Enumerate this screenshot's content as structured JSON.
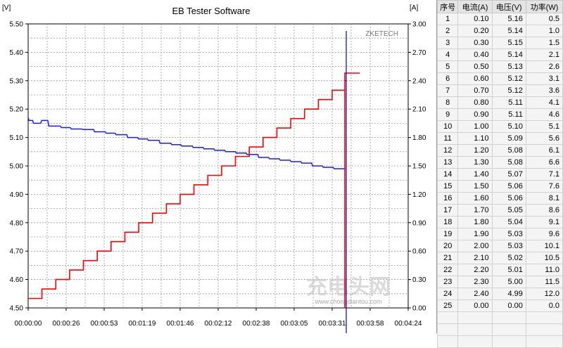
{
  "window": {
    "title": "EB Tester Software"
  },
  "chart": {
    "left_unit": "[V]",
    "right_unit": "[A]",
    "brand": "ZKETECH",
    "watermark": "充电头网",
    "watermark_url": "www.chongdiantou.com",
    "colors": {
      "voltage": "#1a1aff",
      "current": "#ff0000",
      "grid": "#9a9a9a",
      "cursor": "#0000cc"
    }
  },
  "chart_data": {
    "type": "line",
    "title": "EB Tester Software",
    "xlabel": "",
    "ylabel": "[V]",
    "y2label": "[A]",
    "x_ticks": [
      "00:00:00",
      "00:00:26",
      "00:00:53",
      "00:01:19",
      "00:01:46",
      "00:02:12",
      "00:02:38",
      "00:03:05",
      "00:03:31",
      "00:03:58",
      "00:04:24"
    ],
    "y_left_ticks": [
      "5.50",
      "5.40",
      "5.30",
      "5.20",
      "5.10",
      "5.00",
      "4.90",
      "4.80",
      "4.70",
      "4.60",
      "4.50"
    ],
    "y_right_ticks": [
      "3.00",
      "2.70",
      "2.40",
      "2.10",
      "1.80",
      "1.50",
      "1.20",
      "0.90",
      "0.60",
      "0.30",
      "0.00"
    ],
    "ylim": [
      4.5,
      5.5
    ],
    "y2lim": [
      0,
      3
    ],
    "xlim_seconds": [
      0,
      264
    ],
    "grid": true,
    "series": [
      {
        "name": "电压",
        "axis": "left",
        "points": [
          [
            0,
            5.17
          ],
          [
            1,
            5.16
          ],
          [
            5,
            5.16
          ],
          [
            6,
            5.15
          ],
          [
            14,
            5.15
          ],
          [
            15,
            5.16
          ],
          [
            22,
            5.16
          ],
          [
            23,
            5.14
          ],
          [
            36,
            5.14
          ],
          [
            37,
            5.135
          ],
          [
            47,
            5.135
          ],
          [
            48,
            5.13
          ],
          [
            60,
            5.13
          ],
          [
            61,
            5.128
          ],
          [
            73,
            5.128
          ],
          [
            74,
            5.12
          ],
          [
            86,
            5.12
          ],
          [
            87,
            5.115
          ],
          [
            97,
            5.115
          ],
          [
            98,
            5.11
          ],
          [
            110,
            5.11
          ],
          [
            111,
            5.1
          ],
          [
            122,
            5.1
          ],
          [
            123,
            5.095
          ],
          [
            133,
            5.095
          ],
          [
            134,
            5.09
          ],
          [
            146,
            5.09
          ],
          [
            147,
            5.08
          ],
          [
            159,
            5.08
          ],
          [
            160,
            5.075
          ],
          [
            170,
            5.075
          ],
          [
            171,
            5.07
          ],
          [
            183,
            5.07
          ],
          [
            184,
            5.065
          ],
          [
            195,
            5.065
          ],
          [
            196,
            5.06
          ],
          [
            207,
            5.06
          ],
          [
            208,
            5.055
          ],
          [
            219,
            5.055
          ],
          [
            220,
            5.05
          ],
          [
            231,
            5.05
          ],
          [
            232,
            5.045
          ],
          [
            243,
            5.045
          ],
          [
            244,
            5.04
          ],
          [
            256,
            5.04
          ],
          [
            257,
            5.03
          ],
          [
            268,
            5.03
          ],
          [
            269,
            5.025
          ],
          [
            280,
            5.025
          ],
          [
            281,
            5.02
          ],
          [
            292,
            5.02
          ],
          [
            293,
            5.015
          ],
          [
            304,
            5.015
          ],
          [
            305,
            5.01
          ],
          [
            316,
            5.01
          ],
          [
            317,
            5.0
          ],
          [
            328,
            5.0
          ],
          [
            329,
            4.995
          ],
          [
            340,
            4.995
          ],
          [
            341,
            4.99
          ],
          [
            353,
            4.99
          ]
        ],
        "color": "#1a1aff"
      },
      {
        "name": "电流",
        "axis": "right",
        "step_values": [
          0.1,
          0.2,
          0.3,
          0.4,
          0.5,
          0.6,
          0.7,
          0.8,
          0.9,
          1.0,
          1.1,
          1.2,
          1.3,
          1.4,
          1.5,
          1.6,
          1.7,
          1.8,
          1.9,
          2.0,
          2.1,
          2.2,
          2.3,
          2.4,
          2.48
        ],
        "step_seconds": 9.6,
        "end_second": 220.0,
        "drop_to": 0.0,
        "color": "#ff0000"
      }
    ],
    "cursor_x_label": "00:03:58"
  },
  "table": {
    "headers": [
      "序号",
      "电流(A)",
      "电压(V)",
      "功率(W)"
    ],
    "rows": [
      [
        "1",
        "0.10",
        "5.16",
        "0.5"
      ],
      [
        "2",
        "0.20",
        "5.14",
        "1.0"
      ],
      [
        "3",
        "0.30",
        "5.15",
        "1.5"
      ],
      [
        "4",
        "0.40",
        "5.14",
        "2.1"
      ],
      [
        "5",
        "0.50",
        "5.13",
        "2.6"
      ],
      [
        "6",
        "0.60",
        "5.12",
        "3.1"
      ],
      [
        "7",
        "0.70",
        "5.12",
        "3.6"
      ],
      [
        "8",
        "0.80",
        "5.11",
        "4.1"
      ],
      [
        "9",
        "0.90",
        "5.11",
        "4.6"
      ],
      [
        "10",
        "1.00",
        "5.10",
        "5.1"
      ],
      [
        "11",
        "1.10",
        "5.09",
        "5.6"
      ],
      [
        "12",
        "1.20",
        "5.08",
        "6.1"
      ],
      [
        "13",
        "1.30",
        "5.08",
        "6.6"
      ],
      [
        "14",
        "1.40",
        "5.07",
        "7.1"
      ],
      [
        "15",
        "1.50",
        "5.06",
        "7.6"
      ],
      [
        "16",
        "1.60",
        "5.06",
        "8.1"
      ],
      [
        "17",
        "1.70",
        "5.05",
        "8.6"
      ],
      [
        "18",
        "1.80",
        "5.04",
        "9.1"
      ],
      [
        "19",
        "1.90",
        "5.03",
        "9.6"
      ],
      [
        "20",
        "2.00",
        "5.03",
        "10.1"
      ],
      [
        "21",
        "2.10",
        "5.02",
        "10.5"
      ],
      [
        "22",
        "2.20",
        "5.01",
        "11.0"
      ],
      [
        "23",
        "2.30",
        "5.00",
        "11.5"
      ],
      [
        "24",
        "2.40",
        "4.99",
        "12.0"
      ],
      [
        "25",
        "0.00",
        "0.00",
        "0.0"
      ],
      [
        "",
        "",
        "",
        ""
      ],
      [
        "",
        "",
        "",
        ""
      ],
      [
        "",
        "",
        "",
        ""
      ]
    ]
  }
}
